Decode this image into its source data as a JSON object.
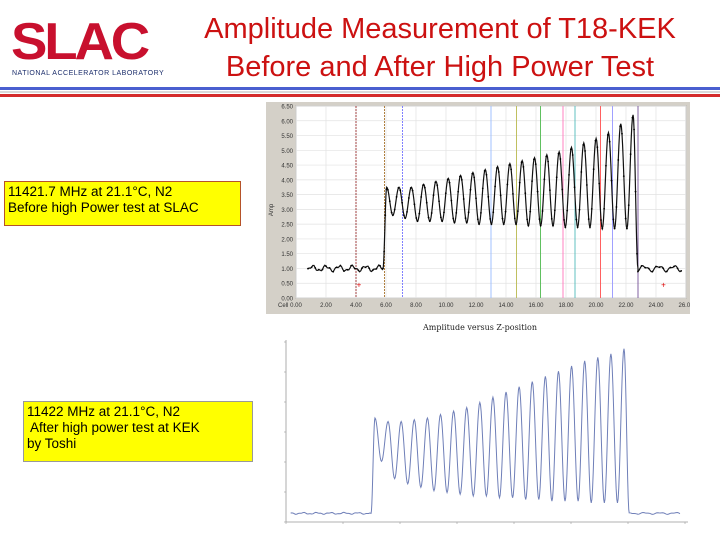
{
  "logo": {
    "text": "SLAC",
    "subtitle": "NATIONAL ACCELERATOR LABORATORY"
  },
  "title": {
    "line1": "Amplitude Measurement of T18-KEK",
    "line2": "Before and After High Power Test"
  },
  "note_before": {
    "text": "11421.7 MHz at 21.1°C, N2\nBefore high Power test at SLAC"
  },
  "note_after": {
    "text": "11422 MHz at 21.1°C, N2\n After high power test at KEK\nby Toshi"
  },
  "chart1": {
    "yticks": [
      "0.00",
      "0.50",
      "1.00",
      "1.50",
      "2.00",
      "2.50",
      "3.00",
      "3.50",
      "4.00",
      "4.50",
      "5.00",
      "5.50",
      "6.00",
      "6.50"
    ],
    "xticks": [
      "0.00",
      "2.00",
      "4.00",
      "6.00",
      "8.00",
      "10.00",
      "12.00",
      "14.00",
      "16.00",
      "18.00",
      "20.00",
      "22.00",
      "24.00",
      "26.00"
    ],
    "ylabel": "Amp",
    "xlabel_left": "Cell"
  },
  "chart2": {
    "title": "Amplitude versus Z-position"
  },
  "chart_data": [
    {
      "type": "line",
      "ylabel": "Amp",
      "xlim": [
        0,
        26
      ],
      "ylim": [
        0,
        6.5
      ],
      "grid": true,
      "peaks_y": [
        3.75,
        3.75,
        3.75,
        3.85,
        3.95,
        4.05,
        4.15,
        4.25,
        4.35,
        4.45,
        4.55,
        4.65,
        4.75,
        4.85,
        4.95,
        5.1,
        5.25,
        5.4,
        5.6,
        5.9,
        6.2
      ],
      "troughs_y": [
        2.8,
        2.7,
        2.6,
        2.6,
        2.6,
        2.55,
        2.55,
        2.5,
        2.5,
        2.5,
        2.5,
        2.45,
        2.45,
        2.45,
        2.4,
        2.4,
        2.4,
        2.35,
        2.35,
        2.35
      ],
      "flat_level": 1.0,
      "x_rise": 5.8,
      "x_fall": 22.8
    },
    {
      "type": "line",
      "title": "Amplitude versus Z-position",
      "peaks_y": [
        0.6,
        0.58,
        0.58,
        0.59,
        0.6,
        0.62,
        0.64,
        0.66,
        0.69,
        0.72,
        0.75,
        0.78,
        0.81,
        0.84,
        0.87,
        0.9,
        0.93,
        0.95,
        0.97,
        1.0
      ],
      "troughs_y": [
        0.35,
        0.25,
        0.22,
        0.2,
        0.18,
        0.17,
        0.16,
        0.15,
        0.15,
        0.14,
        0.14,
        0.13,
        0.13,
        0.12,
        0.12,
        0.12,
        0.11,
        0.11,
        0.11
      ],
      "flat_level": 0.05
    }
  ]
}
